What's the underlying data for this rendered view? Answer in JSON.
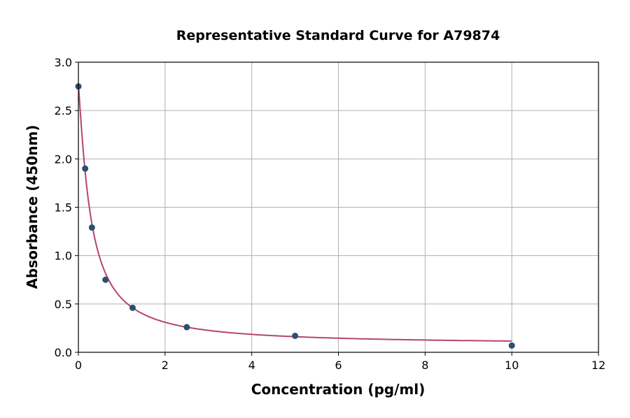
{
  "chart_data": {
    "type": "scatter",
    "title": "Representative Standard Curve for A79874",
    "xlabel": "Concentration (pg/ml)",
    "ylabel": "Absorbance (450nm)",
    "xlim": [
      0,
      12
    ],
    "ylim": [
      0,
      3.0
    ],
    "xticks": [
      "0",
      "2",
      "4",
      "6",
      "8",
      "10",
      "12"
    ],
    "yticks": [
      "0.0",
      "0.5",
      "1.0",
      "1.5",
      "2.0",
      "2.5",
      "3.0"
    ],
    "grid": true,
    "points": {
      "x": [
        0,
        0.156,
        0.3125,
        0.625,
        1.25,
        2.5,
        5,
        10
      ],
      "y": [
        2.75,
        1.9,
        1.29,
        0.75,
        0.46,
        0.26,
        0.17,
        0.07
      ]
    },
    "fit_curve": "4PL",
    "colors": {
      "points": "#2c4f70",
      "curve": "#b5446e",
      "grid": "#b0b0b0"
    }
  }
}
